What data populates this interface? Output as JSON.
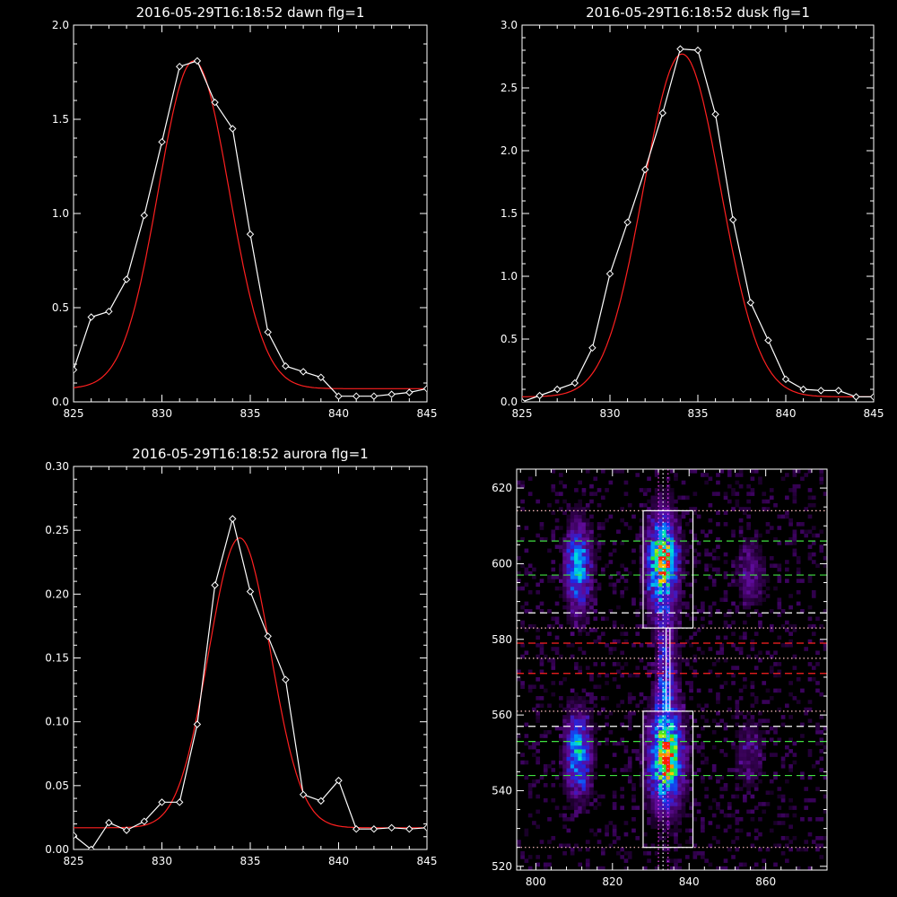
{
  "chart_data": [
    {
      "type": "line",
      "title": "2016-05-29T16:18:52 dawn flg=1",
      "xlim": [
        825,
        845
      ],
      "ylim": [
        0,
        2.0
      ],
      "xticks": [
        "825",
        "830",
        "835",
        "840",
        "845"
      ],
      "yticks": [
        "0.0",
        "0.5",
        "1.0",
        "1.5",
        "2.0"
      ],
      "series": [
        {
          "kind": "data",
          "color": "#ffffff",
          "x": [
            825,
            826,
            827,
            828,
            829,
            830,
            831,
            832,
            833,
            834,
            835,
            836,
            837,
            838,
            839,
            840,
            841,
            842,
            843,
            844,
            845
          ],
          "y": [
            0.17,
            0.45,
            0.48,
            0.65,
            0.99,
            1.38,
            1.78,
            1.81,
            1.59,
            1.45,
            0.89,
            0.37,
            0.19,
            0.16,
            0.13,
            0.03,
            0.03,
            0.03,
            0.04,
            0.05,
            0.07
          ]
        },
        {
          "kind": "fit",
          "color": "#ff2020",
          "model": "gaussian",
          "center": 831.8,
          "sigma": 2.0,
          "amplitude": 1.74,
          "baseline": 0.07
        }
      ]
    },
    {
      "type": "line",
      "title": "2016-05-29T16:18:52 dusk flg=1",
      "xlim": [
        825,
        845
      ],
      "ylim": [
        0,
        3.0
      ],
      "xticks": [
        "825",
        "830",
        "835",
        "840",
        "845"
      ],
      "yticks": [
        "0.0",
        "0.5",
        "1.0",
        "1.5",
        "2.0",
        "2.5",
        "3.0"
      ],
      "series": [
        {
          "kind": "data",
          "color": "#ffffff",
          "x": [
            825,
            826,
            827,
            828,
            829,
            830,
            831,
            832,
            833,
            834,
            835,
            836,
            837,
            838,
            839,
            840,
            841,
            842,
            843,
            844,
            845
          ],
          "y": [
            0.0,
            0.05,
            0.1,
            0.15,
            0.43,
            1.02,
            1.43,
            1.85,
            2.3,
            2.81,
            2.8,
            2.29,
            1.45,
            0.79,
            0.49,
            0.18,
            0.1,
            0.09,
            0.09,
            0.04,
            0.04
          ]
        },
        {
          "kind": "fit",
          "color": "#ff2020",
          "model": "gaussian",
          "center": 834.1,
          "sigma": 2.2,
          "amplitude": 2.73,
          "baseline": 0.04
        }
      ]
    },
    {
      "type": "line",
      "title": "2016-05-29T16:18:52 aurora flg=1",
      "xlim": [
        825,
        845
      ],
      "ylim": [
        0,
        0.3
      ],
      "xticks": [
        "825",
        "830",
        "835",
        "840",
        "845"
      ],
      "yticks": [
        "0.00",
        "0.05",
        "0.10",
        "0.15",
        "0.20",
        "0.25",
        "0.30"
      ],
      "series": [
        {
          "kind": "data",
          "color": "#ffffff",
          "x": [
            825,
            826,
            827,
            828,
            829,
            830,
            831,
            832,
            833,
            834,
            835,
            836,
            837,
            838,
            839,
            840,
            841,
            842,
            843,
            844,
            845
          ],
          "y": [
            0.011,
            0.0,
            0.021,
            0.015,
            0.022,
            0.037,
            0.037,
            0.098,
            0.207,
            0.259,
            0.202,
            0.167,
            0.133,
            0.043,
            0.038,
            0.054,
            0.016,
            0.016,
            0.017,
            0.016,
            0.017
          ]
        },
        {
          "kind": "fit",
          "color": "#ff2020",
          "model": "gaussian",
          "center": 834.4,
          "sigma": 1.75,
          "amplitude": 0.227,
          "baseline": 0.017
        }
      ]
    },
    {
      "type": "heatmap",
      "title": "",
      "xlim": [
        795,
        876
      ],
      "ylim": [
        519,
        625
      ],
      "xticks": [
        "800",
        "820",
        "840",
        "860"
      ],
      "yticks": [
        "520",
        "540",
        "560",
        "580",
        "600",
        "620"
      ],
      "blobs": [
        {
          "cx": 811,
          "cy": 599,
          "sx": 2.2,
          "sy": 7.5,
          "amp": 0.5
        },
        {
          "cx": 833,
          "cy": 600,
          "sx": 2.6,
          "sy": 8.5,
          "amp": 0.75
        },
        {
          "cx": 834,
          "cy": 602,
          "sx": 1.2,
          "sy": 3.0,
          "amp": 0.25
        },
        {
          "cx": 856,
          "cy": 597,
          "sx": 2.4,
          "sy": 6.0,
          "amp": 0.18
        },
        {
          "cx": 811,
          "cy": 550,
          "sx": 2.2,
          "sy": 7.0,
          "amp": 0.55
        },
        {
          "cx": 834,
          "cy": 549,
          "sx": 2.8,
          "sy": 8.5,
          "amp": 0.8
        },
        {
          "cx": 835,
          "cy": 548,
          "sx": 1.2,
          "sy": 3.0,
          "amp": 0.3
        },
        {
          "cx": 856,
          "cy": 550,
          "sx": 2.4,
          "sy": 6.0,
          "amp": 0.15
        },
        {
          "cx": 834,
          "cy": 571,
          "sx": 1.8,
          "sy": 10.0,
          "amp": 0.3
        }
      ],
      "boxes": [
        {
          "x": [
            828,
            841
          ],
          "y": [
            583,
            614
          ]
        },
        {
          "x": [
            828,
            841
          ],
          "y": [
            525,
            561
          ]
        }
      ],
      "channel_line": {
        "x": [
          834,
          835
        ],
        "y": [
          561,
          583
        ]
      },
      "vertical_dotted": [
        {
          "x": 832,
          "color": "#ff44ff"
        },
        {
          "x": 834.5,
          "color": "#ff44ff"
        },
        {
          "x": 833.2,
          "color": "#ffffff"
        }
      ],
      "horizontal_lines": [
        {
          "y": 614,
          "color": "#ffc0c0",
          "style": "dotted"
        },
        {
          "y": 606,
          "color": "#40e040",
          "style": "dashed"
        },
        {
          "y": 597,
          "color": "#40e040",
          "style": "dashed"
        },
        {
          "y": 587,
          "color": "#ffffff",
          "style": "dashed"
        },
        {
          "y": 583,
          "color": "#ffc0c0",
          "style": "dotted"
        },
        {
          "y": 579,
          "color": "#ff2020",
          "style": "dashed"
        },
        {
          "y": 575,
          "color": "#ffc0c0",
          "style": "dotted"
        },
        {
          "y": 571,
          "color": "#ff2020",
          "style": "dashed"
        },
        {
          "y": 561,
          "color": "#ffc0c0",
          "style": "dotted"
        },
        {
          "y": 557,
          "color": "#ffffff",
          "style": "dashed"
        },
        {
          "y": 553,
          "color": "#40e040",
          "style": "dashed"
        },
        {
          "y": 544,
          "color": "#40e040",
          "style": "dashed"
        },
        {
          "y": 525,
          "color": "#ffc0c0",
          "style": "dotted"
        }
      ]
    }
  ]
}
